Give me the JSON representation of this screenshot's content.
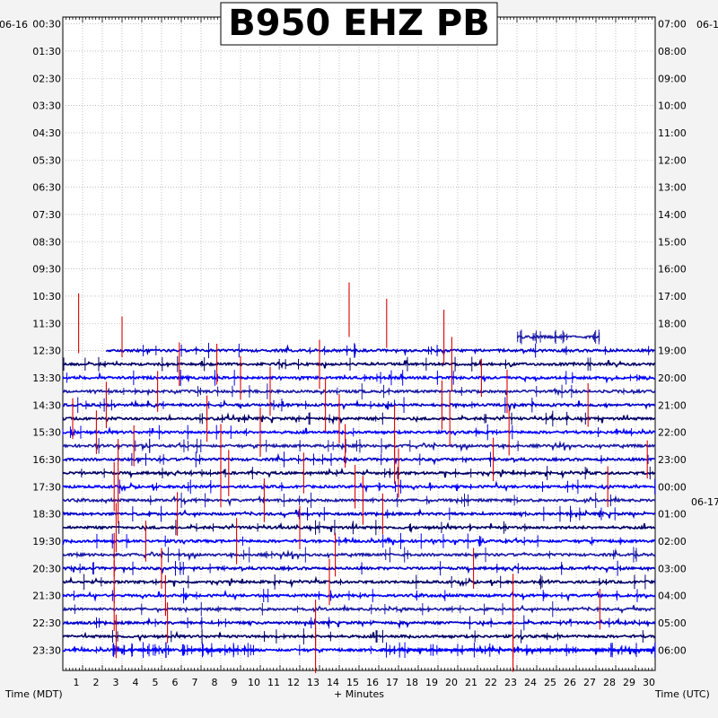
{
  "chart_data": {
    "type": "line",
    "title": "B950 EHZ PB",
    "xlabel": "+ Minutes",
    "left_label": "Time (MDT)",
    "right_label": "Time (UTC)",
    "left_date": "06-16",
    "right_date": "06-1",
    "right_date_change": "06-17",
    "xlim": [
      0,
      30
    ],
    "x_ticks": [
      "1",
      "2",
      "3",
      "4",
      "5",
      "6",
      "7",
      "8",
      "9",
      "10",
      "11",
      "12",
      "13",
      "14",
      "15",
      "16",
      "17",
      "18",
      "19",
      "20",
      "21",
      "22",
      "23",
      "24",
      "25",
      "26",
      "27",
      "28",
      "29",
      "30"
    ],
    "left_ticks": [
      "00:30",
      "01:30",
      "02:30",
      "03:30",
      "04:30",
      "05:30",
      "06:30",
      "07:30",
      "08:30",
      "09:30",
      "10:30",
      "11:30",
      "12:30",
      "13:30",
      "14:30",
      "15:30",
      "16:30",
      "17:30",
      "18:30",
      "19:30",
      "20:30",
      "21:30",
      "22:30",
      "23:30"
    ],
    "right_ticks": [
      "07:00",
      "08:00",
      "09:00",
      "10:00",
      "11:00",
      "12:00",
      "13:00",
      "14:00",
      "15:00",
      "16:00",
      "17:00",
      "18:00",
      "19:00",
      "20:00",
      "21:00",
      "22:00",
      "23:00",
      "00:00",
      "01:00",
      "02:00",
      "03:00",
      "04:00",
      "05:00",
      "06:00"
    ],
    "grid": true,
    "trace_colors": [
      "#0000cc",
      "#000066",
      "#0000ff",
      "#1a1aa6"
    ],
    "event_color": "#dd0000",
    "rows_per_hour": 2,
    "first_active_row": 25,
    "trace_segments": [
      {
        "row": 23,
        "start_min": 23,
        "end_min": 27.2
      },
      {
        "row": 24,
        "start_min": 2.2,
        "end_min": 30
      },
      {
        "row": 46,
        "start_min": 2.5,
        "end_min": 5.5
      },
      {
        "row": 46,
        "start_min": 6.0,
        "end_min": 10.2
      },
      {
        "row": 46,
        "start_min": 16.0,
        "end_min": 30
      }
    ],
    "events": [
      {
        "row": 22,
        "minute": 0.8,
        "amp": 2.2
      },
      {
        "row": 21,
        "minute": 14.5,
        "amp": 2.0
      },
      {
        "row": 22,
        "minute": 16.4,
        "amp": 1.8
      },
      {
        "row": 23,
        "minute": 19.3,
        "amp": 2.0
      },
      {
        "row": 23,
        "minute": 3.0,
        "amp": 1.5
      },
      {
        "row": 25,
        "minute": 5.9,
        "amp": 1.6
      },
      {
        "row": 25,
        "minute": 7.8,
        "amp": 1.5
      },
      {
        "row": 25,
        "minute": 13.0,
        "amp": 1.8
      },
      {
        "row": 25,
        "minute": 19.7,
        "amp": 2.0
      },
      {
        "row": 26,
        "minute": 9.0,
        "amp": 1.6
      },
      {
        "row": 26,
        "minute": 21.2,
        "amp": 1.4
      },
      {
        "row": 27,
        "minute": 4.8,
        "amp": 1.5
      },
      {
        "row": 27,
        "minute": 10.5,
        "amp": 1.8
      },
      {
        "row": 27,
        "minute": 22.5,
        "amp": 1.6
      },
      {
        "row": 28,
        "minute": 2.2,
        "amp": 1.7
      },
      {
        "row": 28,
        "minute": 13.3,
        "amp": 2.0
      },
      {
        "row": 28,
        "minute": 19.2,
        "amp": 1.8
      },
      {
        "row": 28,
        "minute": 26.6,
        "amp": 1.6
      },
      {
        "row": 29,
        "minute": 0.5,
        "amp": 1.5
      },
      {
        "row": 29,
        "minute": 7.3,
        "amp": 1.7
      },
      {
        "row": 29,
        "minute": 14.0,
        "amp": 1.8
      },
      {
        "row": 29,
        "minute": 19.6,
        "amp": 2.0
      },
      {
        "row": 30,
        "minute": 1.7,
        "amp": 1.6
      },
      {
        "row": 30,
        "minute": 10.0,
        "amp": 1.8
      },
      {
        "row": 30,
        "minute": 16.8,
        "amp": 2.0
      },
      {
        "row": 30,
        "minute": 22.6,
        "amp": 1.7
      },
      {
        "row": 31,
        "minute": 3.6,
        "amp": 1.5
      },
      {
        "row": 31,
        "minute": 8.0,
        "amp": 1.6
      },
      {
        "row": 31,
        "minute": 14.3,
        "amp": 1.6
      },
      {
        "row": 32,
        "minute": 2.8,
        "amp": 1.5
      },
      {
        "row": 32,
        "minute": 16.8,
        "amp": 1.8
      },
      {
        "row": 32,
        "minute": 21.8,
        "amp": 1.6
      },
      {
        "row": 32,
        "minute": 29.6,
        "amp": 1.4
      },
      {
        "row": 33,
        "minute": 8.4,
        "amp": 1.7
      },
      {
        "row": 33,
        "minute": 12.2,
        "amp": 1.5
      },
      {
        "row": 33,
        "minute": 17.0,
        "amp": 1.8
      },
      {
        "row": 34,
        "minute": 2.6,
        "amp": 1.8
      },
      {
        "row": 34,
        "minute": 8.0,
        "amp": 1.5
      },
      {
        "row": 34,
        "minute": 14.8,
        "amp": 1.6
      },
      {
        "row": 34,
        "minute": 27.6,
        "amp": 1.5
      },
      {
        "row": 35,
        "minute": 2.8,
        "amp": 1.7
      },
      {
        "row": 35,
        "minute": 10.2,
        "amp": 1.6
      },
      {
        "row": 35,
        "minute": 15.2,
        "amp": 1.8
      },
      {
        "row": 36,
        "minute": 5.8,
        "amp": 1.6
      },
      {
        "row": 36,
        "minute": 16.2,
        "amp": 1.5
      },
      {
        "row": 37,
        "minute": 2.7,
        "amp": 1.8
      },
      {
        "row": 37,
        "minute": 12.0,
        "amp": 1.6
      },
      {
        "row": 38,
        "minute": 4.2,
        "amp": 1.5
      },
      {
        "row": 38,
        "minute": 8.8,
        "amp": 1.7
      },
      {
        "row": 39,
        "minute": 2.6,
        "amp": 1.6
      },
      {
        "row": 39,
        "minute": 13.8,
        "amp": 1.6
      },
      {
        "row": 40,
        "minute": 5.0,
        "amp": 1.5
      },
      {
        "row": 40,
        "minute": 20.8,
        "amp": 1.5
      },
      {
        "row": 41,
        "minute": 2.6,
        "amp": 1.6
      },
      {
        "row": 41,
        "minute": 13.5,
        "amp": 1.7
      },
      {
        "row": 42,
        "minute": 5.2,
        "amp": 1.5
      },
      {
        "row": 42,
        "minute": 22.8,
        "amp": 1.6
      },
      {
        "row": 43,
        "minute": 2.6,
        "amp": 1.6
      },
      {
        "row": 43,
        "minute": 27.2,
        "amp": 1.5
      },
      {
        "row": 44,
        "minute": 5.3,
        "amp": 1.5
      },
      {
        "row": 44,
        "minute": 12.8,
        "amp": 1.7
      },
      {
        "row": 45,
        "minute": 2.7,
        "amp": 1.6
      },
      {
        "row": 45,
        "minute": 22.8,
        "amp": 1.6
      },
      {
        "row": 46,
        "minute": 12.8,
        "amp": 1.7
      },
      {
        "row": 46,
        "minute": 22.8,
        "amp": 1.6
      }
    ]
  }
}
